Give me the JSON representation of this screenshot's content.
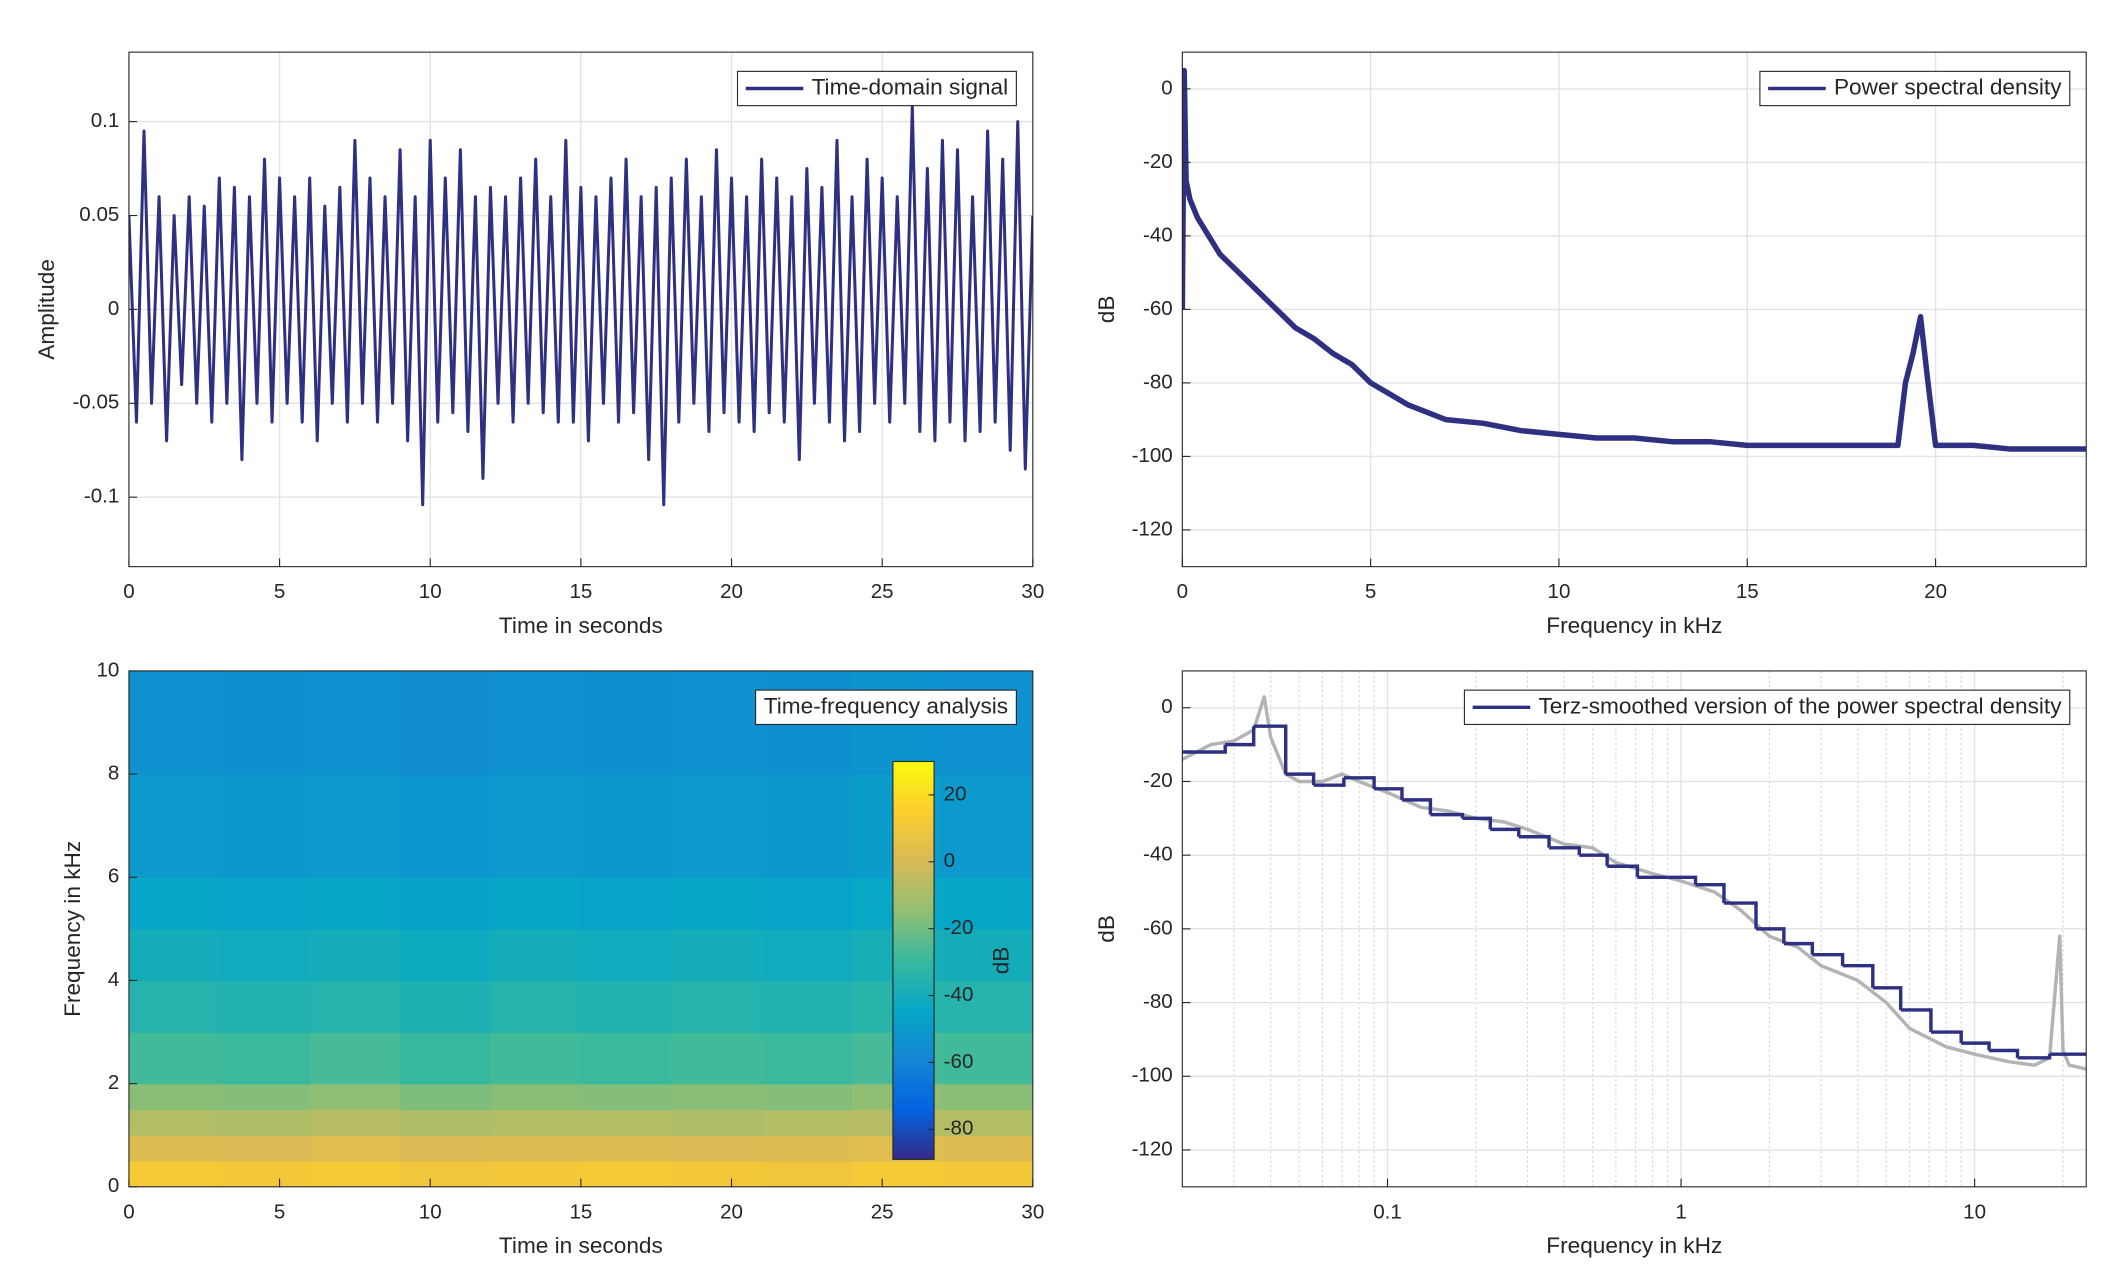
{
  "chart_data": [
    {
      "type": "line",
      "xlabel": "Time in seconds",
      "ylabel": "Amplitude",
      "xlim": [
        0,
        30
      ],
      "ylim": [
        -0.137,
        0.137
      ],
      "xticks": [
        0,
        5,
        10,
        15,
        20,
        25,
        30
      ],
      "yticks": [
        -0.1,
        -0.05,
        0,
        0.05,
        0.1
      ],
      "grid": true,
      "legend": "upper right",
      "x": [
        0,
        0.25,
        0.5,
        0.75,
        1,
        1.25,
        1.5,
        1.75,
        2,
        2.25,
        2.5,
        2.75,
        3,
        3.25,
        3.5,
        3.75,
        4,
        4.25,
        4.5,
        4.75,
        5,
        5.25,
        5.5,
        5.75,
        6,
        6.25,
        6.5,
        6.75,
        7,
        7.25,
        7.5,
        7.75,
        8,
        8.25,
        8.5,
        8.75,
        9,
        9.25,
        9.5,
        9.75,
        10,
        10.25,
        10.5,
        10.75,
        11,
        11.25,
        11.5,
        11.75,
        12,
        12.25,
        12.5,
        12.75,
        13,
        13.25,
        13.5,
        13.75,
        14,
        14.25,
        14.5,
        14.75,
        15,
        15.25,
        15.5,
        15.75,
        16,
        16.25,
        16.5,
        16.75,
        17,
        17.25,
        17.5,
        17.75,
        18,
        18.25,
        18.5,
        18.75,
        19,
        19.25,
        19.5,
        19.75,
        20,
        20.25,
        20.5,
        20.75,
        21,
        21.25,
        21.5,
        21.75,
        22,
        22.25,
        22.5,
        22.75,
        23,
        23.25,
        23.5,
        23.75,
        24,
        24.25,
        24.5,
        24.75,
        25,
        25.25,
        25.5,
        25.75,
        26,
        26.25,
        26.5,
        26.75,
        27,
        27.25,
        27.5,
        27.75,
        28,
        28.25,
        28.5,
        28.75,
        29,
        29.25,
        29.5,
        29.75,
        30
      ],
      "series": [
        {
          "name": "Time-domain signal",
          "color": "#2e3182",
          "values": [
            0.05,
            -0.06,
            0.095,
            -0.05,
            0.06,
            -0.07,
            0.05,
            -0.04,
            0.06,
            -0.05,
            0.055,
            -0.06,
            0.07,
            -0.05,
            0.065,
            -0.08,
            0.06,
            -0.05,
            0.08,
            -0.06,
            0.07,
            -0.05,
            0.06,
            -0.06,
            0.07,
            -0.07,
            0.055,
            -0.05,
            0.065,
            -0.06,
            0.09,
            -0.05,
            0.07,
            -0.06,
            0.06,
            -0.05,
            0.085,
            -0.07,
            0.06,
            -0.104,
            0.09,
            -0.06,
            0.07,
            -0.055,
            0.085,
            -0.065,
            0.06,
            -0.09,
            0.065,
            -0.05,
            0.06,
            -0.06,
            0.07,
            -0.05,
            0.08,
            -0.055,
            0.06,
            -0.06,
            0.09,
            -0.06,
            0.065,
            -0.07,
            0.06,
            -0.05,
            0.07,
            -0.06,
            0.08,
            -0.055,
            0.06,
            -0.08,
            0.065,
            -0.104,
            0.07,
            -0.06,
            0.08,
            -0.05,
            0.06,
            -0.065,
            0.085,
            -0.055,
            0.07,
            -0.06,
            0.06,
            -0.065,
            0.08,
            -0.055,
            0.07,
            -0.06,
            0.06,
            -0.08,
            0.075,
            -0.05,
            0.065,
            -0.06,
            0.09,
            -0.07,
            0.06,
            -0.065,
            0.08,
            -0.05,
            0.07,
            -0.06,
            0.06,
            -0.05,
            0.108,
            -0.065,
            0.075,
            -0.07,
            0.09,
            -0.06,
            0.085,
            -0.07,
            0.06,
            -0.065,
            0.095,
            -0.06,
            0.08,
            -0.075,
            0.1,
            -0.085,
            0.05
          ]
        }
      ]
    },
    {
      "type": "line",
      "xlabel": "Frequency in kHz",
      "ylabel": "dB",
      "xlim": [
        0,
        24
      ],
      "ylim": [
        -130,
        10
      ],
      "xticks": [
        0,
        5,
        10,
        15,
        20
      ],
      "yticks": [
        -120,
        -100,
        -80,
        -60,
        -40,
        -20,
        0
      ],
      "grid": true,
      "legend": "upper right",
      "x": [
        0,
        0.05,
        0.1,
        0.2,
        0.4,
        0.7,
        1,
        1.5,
        2,
        2.5,
        3,
        3.5,
        4,
        4.5,
        5,
        5.5,
        6,
        6.5,
        7,
        8,
        9,
        10,
        11,
        12,
        13,
        14,
        15,
        16,
        16.5,
        17,
        18,
        19,
        19.2,
        19.4,
        19.6,
        19.8,
        20,
        21,
        22,
        23,
        24
      ],
      "series": [
        {
          "name": "Power spectral density",
          "color": "#2e3182",
          "values": [
            -60,
            5,
            -25,
            -30,
            -35,
            -40,
            -45,
            -50,
            -55,
            -60,
            -65,
            -68,
            -72,
            -75,
            -80,
            -83,
            -86,
            -88,
            -90,
            -91,
            -93,
            -94,
            -95,
            -95,
            -96,
            -96,
            -97,
            -97,
            -97,
            -97,
            -97,
            -97,
            -80,
            -72,
            -62,
            -80,
            -97,
            -97,
            -98,
            -98,
            -98
          ]
        }
      ]
    },
    {
      "type": "heatmap",
      "xlabel": "Time in seconds",
      "ylabel": "Frequency in kHz",
      "xlim": [
        0,
        30
      ],
      "ylim": [
        0,
        10
      ],
      "xticks": [
        0,
        5,
        10,
        15,
        20,
        25,
        30
      ],
      "yticks": [
        0,
        2,
        4,
        6,
        8,
        10
      ],
      "legend": "upper right",
      "legend_text": "Time-frequency analysis",
      "colormap": "parula",
      "x_bins": [
        0,
        3,
        6,
        9,
        12,
        15,
        18,
        21,
        24,
        27,
        30
      ],
      "y_bins": [
        0,
        0.5,
        1,
        1.5,
        2,
        3,
        4,
        5,
        6,
        8,
        10
      ],
      "values": [
        [
          12,
          11,
          12,
          10,
          11,
          12,
          11,
          10,
          12,
          11
        ],
        [
          2,
          1,
          3,
          1,
          2,
          2,
          1,
          2,
          3,
          2
        ],
        [
          -8,
          -9,
          -7,
          -9,
          -8,
          -8,
          -9,
          -8,
          -7,
          -8
        ],
        [
          -16,
          -17,
          -15,
          -18,
          -16,
          -17,
          -16,
          -17,
          -15,
          -16
        ],
        [
          -28,
          -29,
          -27,
          -30,
          -28,
          -29,
          -28,
          -29,
          -27,
          -28
        ],
        [
          -35,
          -36,
          -35,
          -37,
          -35,
          -36,
          -35,
          -36,
          -34,
          -35
        ],
        [
          -40,
          -41,
          -40,
          -42,
          -40,
          -41,
          -40,
          -41,
          -39,
          -40
        ],
        [
          -45,
          -46,
          -45,
          -47,
          -45,
          -46,
          -45,
          -46,
          -44,
          -45
        ],
        [
          -50,
          -51,
          -50,
          -52,
          -50,
          -51,
          -50,
          -51,
          -49,
          -50
        ],
        [
          -54,
          -55,
          -54,
          -56,
          -54,
          -55,
          -54,
          -55,
          -53,
          -54
        ]
      ],
      "colorbar": {
        "label": "dB",
        "lim": [
          -89,
          30
        ],
        "ticks": [
          20,
          0,
          -20,
          -40,
          -60,
          -80
        ]
      }
    },
    {
      "type": "line",
      "xlabel": "Frequency in kHz",
      "ylabel": "dB",
      "xscale": "log",
      "xlim": [
        0.02,
        24
      ],
      "ylim": [
        -130,
        10
      ],
      "xticks": [
        0.1,
        1,
        10
      ],
      "yticks": [
        -120,
        -100,
        -80,
        -60,
        -40,
        -20,
        0
      ],
      "grid": true,
      "legend": "upper right",
      "series": [
        {
          "color": "#b3b3b3",
          "x": [
            0.02,
            0.025,
            0.03,
            0.035,
            0.038,
            0.04,
            0.045,
            0.05,
            0.06,
            0.07,
            0.08,
            0.1,
            0.13,
            0.16,
            0.2,
            0.25,
            0.3,
            0.4,
            0.5,
            0.6,
            0.8,
            1,
            1.3,
            1.6,
            2,
            2.5,
            3,
            4,
            5,
            6,
            8,
            10,
            13,
            16,
            18,
            19.5,
            20,
            21,
            24
          ],
          "values": [
            -14,
            -10,
            -9,
            -6,
            3,
            -8,
            -18,
            -20,
            -20,
            -18,
            -20,
            -23,
            -27,
            -28,
            -30,
            -31,
            -33,
            -37,
            -38,
            -42,
            -45,
            -47,
            -50,
            -55,
            -62,
            -65,
            -70,
            -74,
            -80,
            -87,
            -92,
            -94,
            -96,
            -97,
            -95,
            -62,
            -93,
            -97,
            -98
          ]
        },
        {
          "name": "Terz-smoothed version of the power spectral density",
          "color": "#2e3182",
          "step": true,
          "x": [
            0.02,
            0.028,
            0.035,
            0.045,
            0.056,
            0.071,
            0.09,
            0.112,
            0.14,
            0.18,
            0.224,
            0.28,
            0.355,
            0.45,
            0.56,
            0.71,
            0.9,
            1.12,
            1.4,
            1.8,
            2.24,
            2.8,
            3.55,
            4.5,
            5.6,
            7.1,
            9,
            11.2,
            14,
            18
          ],
          "values": [
            -12,
            -10,
            -5,
            -18,
            -21,
            -19,
            -22,
            -25,
            -29,
            -30,
            -33,
            -35,
            -38,
            -40,
            -43,
            -46,
            -46,
            -48,
            -53,
            -60,
            -64,
            -67,
            -70,
            -76,
            -82,
            -88,
            -91,
            -93,
            -95,
            -94
          ]
        }
      ]
    }
  ]
}
